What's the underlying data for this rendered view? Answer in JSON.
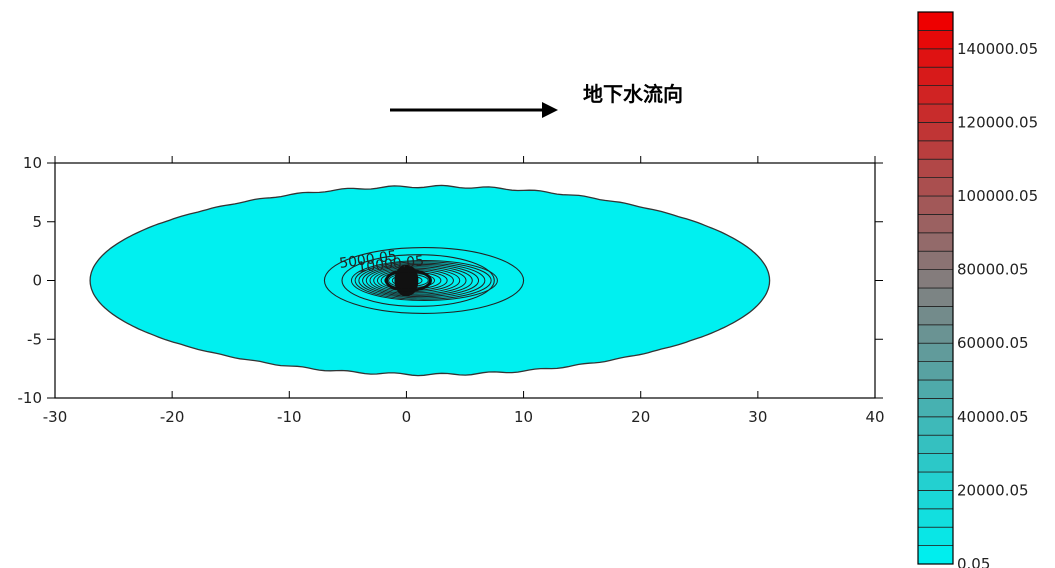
{
  "chart_data": {
    "type": "contour",
    "annotation": "地下水流向",
    "x_ticks": [
      -30,
      -20,
      -10,
      0,
      10,
      20,
      30,
      40
    ],
    "y_ticks": [
      10,
      5,
      0,
      -5,
      -10
    ],
    "xlim": [
      -30,
      40
    ],
    "ylim": [
      -10,
      10
    ],
    "contour_labels": [
      "5000.05",
      "10000.05"
    ],
    "plume": {
      "x_extent": [
        -27,
        31
      ],
      "y_extent": [
        -8,
        8
      ],
      "center": [
        0,
        0
      ]
    },
    "contours": [
      {
        "value": 5000.05,
        "x_extent": [
          -7,
          10
        ],
        "y_extent": [
          -2.8,
          2.8
        ]
      },
      {
        "value": 10000.05,
        "x_extent": [
          -5.5,
          7.5
        ],
        "y_extent": [
          -2.2,
          2.2
        ]
      }
    ],
    "colorbar": {
      "labels": [
        "140000.05",
        "120000.05",
        "100000.05",
        "80000.05",
        "60000.05",
        "40000.05",
        "20000.05",
        "0.05"
      ],
      "values": [
        140000.05,
        120000.05,
        100000.05,
        80000.05,
        60000.05,
        40000.05,
        20000.05,
        0.05
      ],
      "min": 0.05,
      "max": 150000.05,
      "steps": 30,
      "low_color": "#00eeee",
      "mid_color": "#808080",
      "high_color": "#ee0000"
    },
    "colors": {
      "plume_fill": "#00f0f0",
      "contour_line": "#222222",
      "axis": "#000000"
    }
  }
}
